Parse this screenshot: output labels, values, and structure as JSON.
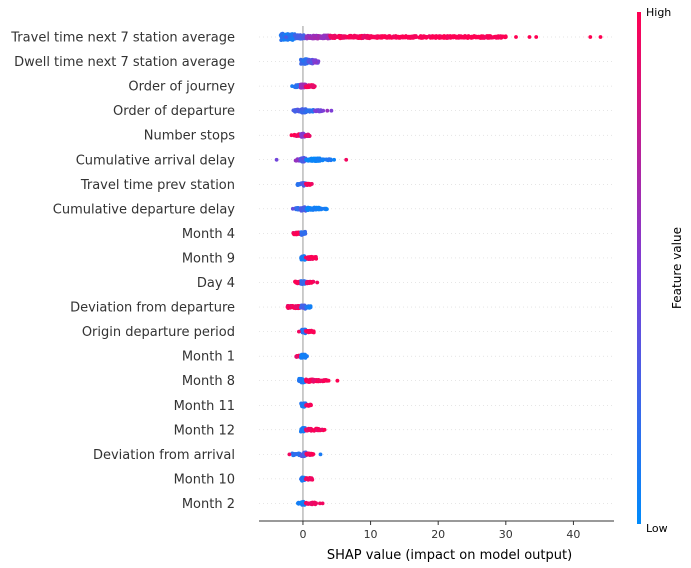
{
  "chart_data": {
    "type": "scatter",
    "subtype": "shap-beeswarm",
    "title": "",
    "xlabel": "SHAP value (impact on model output)",
    "xlim": [
      -6.5,
      46
    ],
    "xticks": [
      0,
      10,
      20,
      30,
      40
    ],
    "xtick_labels": [
      "0",
      "10",
      "20",
      "30",
      "40"
    ],
    "zero_line": true,
    "grid": false,
    "features": [
      "Travel time next 7 station average",
      "Dwell time next 7 station average",
      "Order of journey",
      "Order of departure",
      "Number stops",
      "Cumulative arrival delay",
      "Travel time prev station",
      "Cumulative departure delay",
      "Month 4",
      "Month 9",
      "Day 4",
      "Deviation from departure",
      "Origin departure period",
      "Month 1",
      "Month 8",
      "Month 11",
      "Month 12",
      "Deviation from arrival",
      "Month 10",
      "Month 2"
    ],
    "rows": [
      {
        "dense": [
          [
            -3.3,
            -2.8,
            4.0,
            0.15
          ],
          [
            -2.8,
            -1.2,
            3.0,
            0.1
          ],
          [
            -1.2,
            0.5,
            2.0,
            0.3
          ],
          [
            0.5,
            4.0,
            1.6,
            0.6
          ],
          [
            4.0,
            10.0,
            1.3,
            0.95
          ],
          [
            10.0,
            30.0,
            1.0,
            1.0
          ]
        ],
        "sparse": [
          [
            -2.5,
            0.3
          ],
          [
            12,
            1
          ],
          [
            15,
            1
          ],
          [
            20,
            1
          ],
          [
            26,
            1
          ],
          [
            30,
            1
          ],
          [
            31.5,
            1
          ],
          [
            33.5,
            1
          ],
          [
            34.5,
            1
          ],
          [
            42.5,
            1
          ],
          [
            44,
            1
          ]
        ]
      },
      {
        "dense": [
          [
            -0.3,
            0.8,
            2.5,
            0.2
          ],
          [
            0.8,
            1.6,
            2.0,
            0.35
          ],
          [
            1.6,
            2.4,
            1.4,
            0.5
          ]
        ],
        "sparse": []
      },
      {
        "dense": [
          [
            -1.3,
            -0.4,
            1.2,
            0.15
          ],
          [
            -0.4,
            0.4,
            1.8,
            0.6
          ],
          [
            0.4,
            1.8,
            1.2,
            0.95
          ]
        ],
        "sparse": [
          [
            -1.6,
            0.1
          ]
        ]
      },
      {
        "dense": [
          [
            -1.5,
            -0.3,
            1.2,
            0.3
          ],
          [
            -0.3,
            0.5,
            2.0,
            0.25
          ],
          [
            0.5,
            1.6,
            1.2,
            0.15
          ],
          [
            1.6,
            2.8,
            0.8,
            0.45
          ]
        ],
        "sparse": [
          [
            3.0,
            0.5
          ],
          [
            3.6,
            0.6
          ],
          [
            4.2,
            0.5
          ]
        ]
      },
      {
        "dense": [
          [
            -1.3,
            -0.3,
            1.0,
            0.95
          ],
          [
            -0.3,
            0.3,
            1.8,
            0.5
          ],
          [
            0.3,
            1.0,
            1.0,
            0.9
          ]
        ],
        "sparse": [
          [
            -1.7,
            1
          ]
        ]
      },
      {
        "dense": [
          [
            -1.2,
            -0.4,
            1.0,
            0.55
          ],
          [
            -0.4,
            0.4,
            2.0,
            0.35
          ],
          [
            0.4,
            2.8,
            1.4,
            0.05
          ],
          [
            2.8,
            4.2,
            0.6,
            0.1
          ]
        ],
        "sparse": [
          [
            -3.9,
            0.45
          ],
          [
            4.6,
            0.05
          ],
          [
            6.4,
            0.95
          ]
        ]
      },
      {
        "dense": [
          [
            -0.8,
            -0.2,
            1.0,
            0.2
          ],
          [
            -0.2,
            0.4,
            1.6,
            0.3
          ],
          [
            0.4,
            1.4,
            0.8,
            0.95
          ]
        ],
        "sparse": []
      },
      {
        "dense": [
          [
            -1.2,
            -0.4,
            1.0,
            0.2
          ],
          [
            -0.4,
            0.5,
            2.0,
            0.3
          ],
          [
            0.5,
            2.6,
            1.4,
            0.05
          ],
          [
            2.6,
            3.6,
            0.6,
            0.05
          ]
        ],
        "sparse": [
          [
            -1.5,
            0.4
          ]
        ]
      },
      {
        "dense": [
          [
            -1.6,
            -0.3,
            1.0,
            0.95
          ],
          [
            -0.3,
            0.4,
            1.8,
            0.2
          ]
        ],
        "sparse": []
      },
      {
        "dense": [
          [
            -0.3,
            0.4,
            2.0,
            0.1
          ],
          [
            0.4,
            2.0,
            1.2,
            0.95
          ]
        ],
        "sparse": []
      },
      {
        "dense": [
          [
            -1.2,
            -0.3,
            1.0,
            0.95
          ],
          [
            -0.3,
            0.5,
            2.0,
            0.2
          ],
          [
            0.5,
            1.6,
            1.0,
            0.95
          ]
        ],
        "sparse": [
          [
            2.1,
            0.95
          ]
        ]
      },
      {
        "dense": [
          [
            -2.3,
            -0.3,
            1.2,
            0.95
          ],
          [
            -0.3,
            0.5,
            2.0,
            0.3
          ],
          [
            0.5,
            1.2,
            1.0,
            0.1
          ]
        ],
        "sparse": []
      },
      {
        "dense": [
          [
            -0.3,
            0.4,
            2.0,
            0.15
          ],
          [
            0.4,
            1.6,
            1.0,
            0.95
          ]
        ],
        "sparse": [
          [
            -0.6,
            0.95
          ]
        ]
      },
      {
        "dense": [
          [
            -1.0,
            -0.3,
            1.0,
            0.95
          ],
          [
            -0.3,
            0.4,
            1.8,
            0.1
          ]
        ],
        "sparse": [
          [
            0.6,
            0.1
          ]
        ]
      },
      {
        "dense": [
          [
            -0.6,
            0.4,
            2.0,
            0.1
          ],
          [
            0.4,
            2.5,
            1.3,
            0.95
          ],
          [
            2.5,
            3.6,
            0.8,
            0.95
          ]
        ],
        "sparse": [
          [
            3.8,
            1
          ],
          [
            5.1,
            1
          ]
        ]
      },
      {
        "dense": [
          [
            -0.3,
            0.4,
            2.0,
            0.1
          ],
          [
            0.4,
            1.2,
            0.8,
            0.95
          ]
        ],
        "sparse": []
      },
      {
        "dense": [
          [
            -0.3,
            0.4,
            2.0,
            0.1
          ],
          [
            0.4,
            2.3,
            1.2,
            0.95
          ],
          [
            2.3,
            3.0,
            0.6,
            0.95
          ]
        ],
        "sparse": [
          [
            3.2,
            1
          ]
        ]
      },
      {
        "dense": [
          [
            -1.6,
            -0.3,
            1.0,
            0.15
          ],
          [
            -0.3,
            0.5,
            2.0,
            0.3
          ],
          [
            0.5,
            1.6,
            1.0,
            0.95
          ]
        ],
        "sparse": [
          [
            -2.0,
            0.95
          ],
          [
            2.6,
            0.1
          ]
        ]
      },
      {
        "dense": [
          [
            -0.3,
            0.4,
            2.0,
            0.1
          ],
          [
            0.4,
            1.4,
            1.0,
            0.95
          ]
        ],
        "sparse": []
      },
      {
        "dense": [
          [
            -0.8,
            -0.2,
            0.8,
            0.1
          ],
          [
            -0.2,
            0.4,
            1.8,
            0.1
          ],
          [
            0.4,
            2.0,
            1.0,
            0.95
          ]
        ],
        "sparse": [
          [
            2.5,
            0.95
          ],
          [
            2.9,
            0.95
          ]
        ]
      }
    ],
    "colorbar": {
      "title": "Feature value",
      "high_label": "High",
      "low_label": "Low",
      "low_color": "#008bfb",
      "high_color": "#ff0052"
    }
  }
}
